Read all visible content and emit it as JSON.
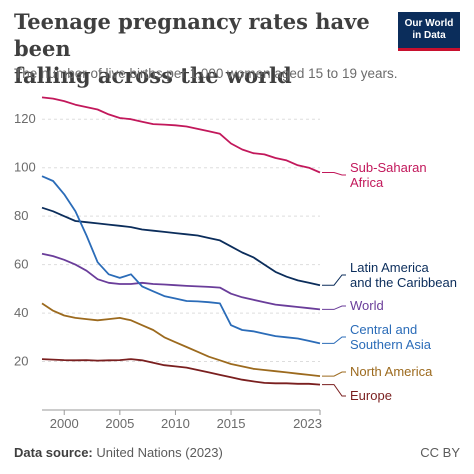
{
  "header": {
    "title_line1": "Teenage pregnancy rates have been",
    "title_line2": "falling across the world",
    "subtitle": "The number of live births per 1,000 women aged 15 to 19 years.",
    "logo_line1": "Our World",
    "logo_line2": "in Data"
  },
  "footer": {
    "source_label": "Data source:",
    "source_text": "United Nations (2023)",
    "license": "CC BY"
  },
  "colors": {
    "Sub-Saharan Africa": "#c2185b",
    "Latin America and the Caribbean": "#0b2d5b",
    "World": "#6a3d9a",
    "Central and Southern Asia": "#2b6cb8",
    "North America": "#9c6a1e",
    "Europe": "#7a1f1f",
    "grid": "#dddddd"
  },
  "chart_data": {
    "type": "line",
    "x": [
      1998,
      1999,
      2000,
      2001,
      2002,
      2003,
      2004,
      2005,
      2006,
      2007,
      2008,
      2009,
      2010,
      2011,
      2012,
      2013,
      2014,
      2015,
      2016,
      2017,
      2018,
      2019,
      2020,
      2021,
      2022,
      2023
    ],
    "ylim": [
      0,
      130
    ],
    "xlim": [
      1998,
      2023
    ],
    "yticks": [
      20,
      40,
      60,
      80,
      100,
      120
    ],
    "xticks": [
      2000,
      2005,
      2010,
      2015,
      2023
    ],
    "grid": "horizontal dashed",
    "series": [
      {
        "name": "Sub-Saharan Africa",
        "label_lines": [
          "Sub-Saharan",
          "Africa"
        ],
        "values": [
          129,
          128.5,
          127.5,
          126,
          125,
          124,
          122,
          120.5,
          120,
          119,
          118,
          117.8,
          117.5,
          117,
          116,
          115,
          114,
          110,
          107.5,
          106,
          105.5,
          104,
          103,
          101,
          100,
          98
        ]
      },
      {
        "name": "Latin America and the Caribbean",
        "label_lines": [
          "Latin America",
          "and the Caribbean"
        ],
        "values": [
          83.5,
          82,
          80,
          78,
          77.5,
          77,
          76.5,
          76,
          75.5,
          74.5,
          74,
          73.5,
          73,
          72.5,
          72,
          71,
          70,
          67.5,
          65,
          63,
          60,
          57,
          55,
          53.5,
          52.5,
          51.5
        ]
      },
      {
        "name": "World",
        "label_lines": [
          "World"
        ],
        "values": [
          64.5,
          63.5,
          62,
          60,
          57.5,
          54,
          52.5,
          52,
          52,
          52.5,
          52,
          51.8,
          51.5,
          51.2,
          51,
          50.8,
          50.5,
          48,
          46.5,
          45.5,
          44.5,
          43.5,
          43,
          42.5,
          42,
          41.5
        ]
      },
      {
        "name": "Central and Southern Asia",
        "label_lines": [
          "Central and",
          "Southern Asia"
        ],
        "values": [
          96.5,
          94.5,
          89,
          82,
          72,
          61,
          56,
          54.5,
          56,
          51,
          49,
          47,
          46,
          45,
          44.8,
          44.5,
          44,
          35,
          33,
          32.5,
          31.5,
          30.5,
          30,
          29.5,
          28.5,
          27.5
        ]
      },
      {
        "name": "North America",
        "label_lines": [
          "North America"
        ],
        "values": [
          44,
          41,
          39,
          38,
          37.5,
          37,
          37.5,
          38,
          37,
          35,
          33,
          30,
          28,
          26,
          24,
          22,
          20.5,
          19,
          18,
          17,
          16.5,
          16,
          15.5,
          15,
          14.5,
          14
        ]
      },
      {
        "name": "Europe",
        "label_lines": [
          "Europe"
        ],
        "values": [
          21,
          20.8,
          20.6,
          20.5,
          20.6,
          20.4,
          20.5,
          20.6,
          21,
          20.5,
          19.5,
          18.5,
          18,
          17.5,
          16.5,
          15.5,
          14.5,
          13.5,
          12.5,
          11.8,
          11.2,
          11,
          11,
          10.8,
          10.8,
          10.5
        ]
      }
    ]
  }
}
